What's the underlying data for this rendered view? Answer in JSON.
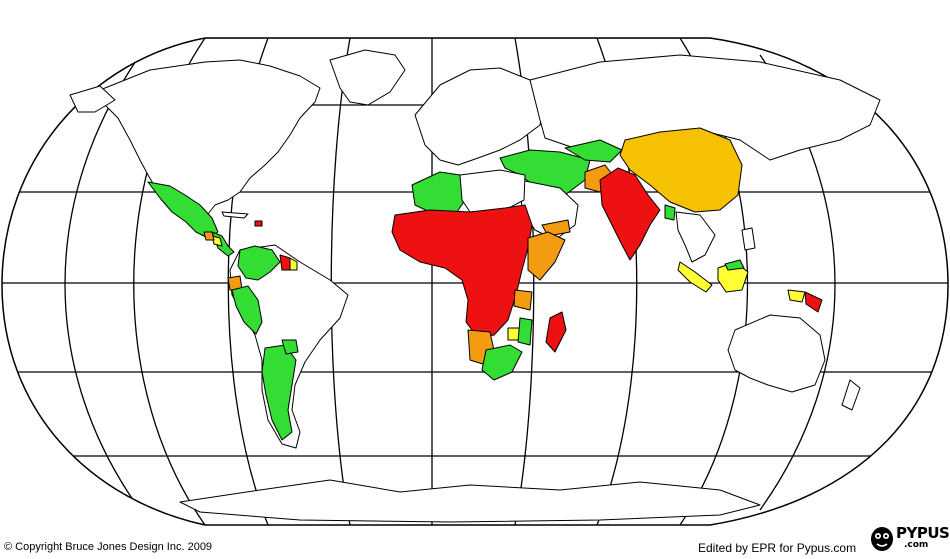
{
  "colors": {
    "green": "#33dd33",
    "red": "#ee1111",
    "orange": "#f39c12",
    "gold": "#f5c100",
    "yellow": "#ffff33",
    "outline": "#000000",
    "background": "#ffffff"
  },
  "footer": {
    "copyright": "© Copyright Bruce Jones Design Inc. 2009",
    "edited": "Edited by EPR for Pypus.com"
  },
  "logo": {
    "name": "PYPUS",
    "sub": ".com",
    "icon": "pypus-mascot-icon"
  }
}
